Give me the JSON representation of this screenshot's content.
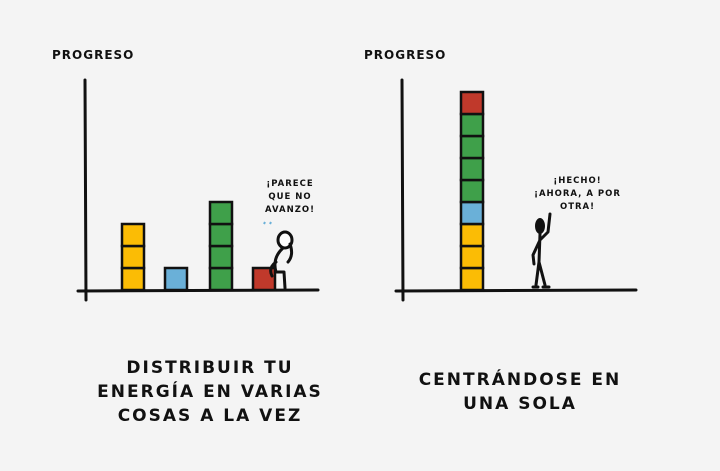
{
  "colors": {
    "yellow": "#fbbc05",
    "blue": "#6ab0d8",
    "green": "#3fa04a",
    "red": "#c0392b",
    "ink": "#111111",
    "background": "#f4f4f4"
  },
  "left_panel": {
    "axis_label": "PROGRESO",
    "speech": [
      "¡PARECE",
      "QUE NO",
      "AVANZO!"
    ],
    "caption": [
      "DISTRIBUIR TU",
      "ENERGÍA EN VARIAS",
      "COSAS A LA VEZ"
    ],
    "stacks": [
      {
        "color": "yellow",
        "blocks": 3
      },
      {
        "color": "blue",
        "blocks": 1
      },
      {
        "color": "green",
        "blocks": 4
      },
      {
        "color": "red",
        "blocks": 1
      }
    ],
    "figure": "sitting-dejected-stick-figure"
  },
  "right_panel": {
    "axis_label": "PROGRESO",
    "speech": [
      "¡HECHO!",
      "¡AHORA, A POR",
      "OTRA!"
    ],
    "caption": [
      "CENTRÁNDOSE EN",
      "UNA SOLA"
    ],
    "stack": [
      "yellow",
      "yellow",
      "yellow",
      "blue",
      "green",
      "green",
      "green",
      "green",
      "red"
    ],
    "figure": "standing-pointing-up-stick-figure"
  }
}
